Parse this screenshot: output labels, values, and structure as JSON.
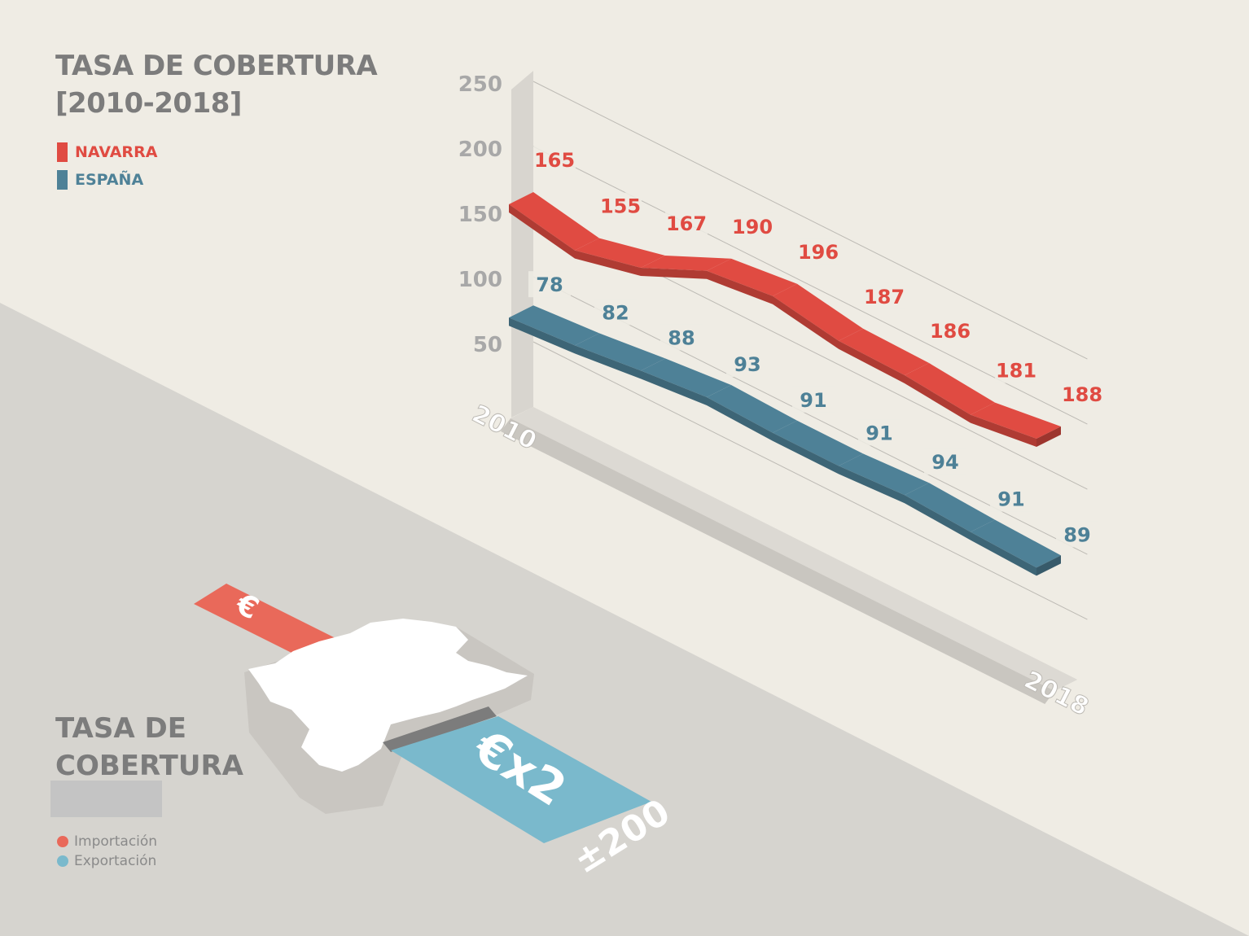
{
  "colors": {
    "navarra": "#e04b42",
    "espana": "#4e8197",
    "importacion": "#e9695a",
    "exportacion": "#7ab9cc",
    "axis_text": "#a8a8a8",
    "title": "#7c7c7c"
  },
  "header": {
    "title_line1": "TASA DE COBERTURA",
    "title_line2": "[2010-2018]"
  },
  "legend": {
    "items": [
      {
        "label": "NAVARRA",
        "color": "#e04b42"
      },
      {
        "label": "ESPAÑA",
        "color": "#4e8197"
      }
    ]
  },
  "chart_data": {
    "type": "line",
    "title": "TASA DE COBERTURA [2010-2018]",
    "x": [
      2010,
      2011,
      2012,
      2013,
      2014,
      2015,
      2016,
      2017,
      2018
    ],
    "x_tick_labels": [
      "2010",
      "2018"
    ],
    "y_ticks": [
      50,
      100,
      150,
      200,
      250
    ],
    "ylim": [
      0,
      250
    ],
    "grid": true,
    "legend_position": "top-left",
    "series": [
      {
        "name": "NAVARRA",
        "color": "#e04b42",
        "values": [
          165,
          155,
          167,
          190,
          196,
          187,
          186,
          181,
          188
        ]
      },
      {
        "name": "ESPAÑA",
        "color": "#4e8197",
        "values": [
          78,
          82,
          88,
          93,
          91,
          91,
          94,
          91,
          89
        ]
      }
    ]
  },
  "bottom": {
    "title_line1": "TASA DE",
    "title_line2": "COBERTURA",
    "euro_symbol": "€",
    "multiplier": "€x2",
    "approx": "±200",
    "legend": [
      {
        "label": "Importación",
        "color": "#e9695a"
      },
      {
        "label": "Exportación",
        "color": "#7ab9cc"
      }
    ]
  }
}
